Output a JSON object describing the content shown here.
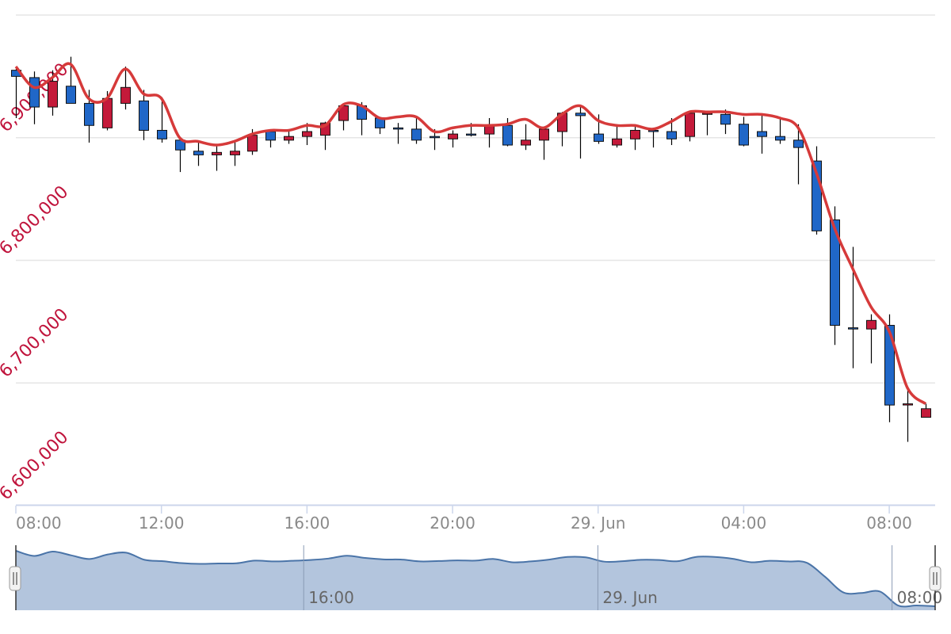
{
  "chart_data": {
    "type": "candlestick",
    "x": [
      "28 Jun 08:00",
      "28 Jun 08:30",
      "28 Jun 09:00",
      "28 Jun 09:30",
      "28 Jun 10:00",
      "28 Jun 10:30",
      "28 Jun 11:00",
      "28 Jun 11:30",
      "28 Jun 12:00",
      "28 Jun 12:30",
      "28 Jun 13:00",
      "28 Jun 13:30",
      "28 Jun 14:00",
      "28 Jun 14:30",
      "28 Jun 15:00",
      "28 Jun 15:30",
      "28 Jun 16:00",
      "28 Jun 16:30",
      "28 Jun 17:00",
      "28 Jun 17:30",
      "28 Jun 18:00",
      "28 Jun 18:30",
      "28 Jun 19:00",
      "28 Jun 19:30",
      "28 Jun 20:00",
      "28 Jun 20:30",
      "28 Jun 21:00",
      "28 Jun 21:30",
      "28 Jun 22:00",
      "28 Jun 22:30",
      "28 Jun 23:00",
      "28 Jun 23:30",
      "29 Jun 00:00",
      "29 Jun 00:30",
      "29 Jun 01:00",
      "29 Jun 01:30",
      "29 Jun 02:00",
      "29 Jun 02:30",
      "29 Jun 03:00",
      "29 Jun 03:30",
      "29 Jun 04:00",
      "29 Jun 04:30",
      "29 Jun 05:00",
      "29 Jun 05:30",
      "29 Jun 06:00",
      "29 Jun 06:30",
      "29 Jun 07:00",
      "29 Jun 07:30",
      "29 Jun 08:00",
      "29 Jun 08:30",
      "29 Jun 09:00"
    ],
    "open": [
      6955000,
      6949000,
      6925000,
      6942000,
      6928000,
      6908000,
      6928000,
      6930000,
      6906000,
      6898000,
      6889000,
      6886000,
      6886000,
      6889000,
      6905000,
      6898000,
      6901000,
      6902000,
      6914000,
      6926000,
      6916000,
      6908000,
      6907000,
      6901000,
      6899000,
      6903000,
      6903000,
      6910000,
      6894000,
      6898000,
      6905000,
      6920000,
      6903000,
      6894000,
      6899000,
      6906000,
      6905000,
      6901000,
      6920000,
      6919000,
      6911000,
      6905000,
      6901000,
      6898000,
      6881000,
      6833000,
      6745000,
      6744000,
      6747000,
      6683000,
      6672000
    ],
    "high": [
      6956000,
      6954000,
      6955000,
      6966000,
      6939000,
      6938000,
      6958000,
      6939000,
      6933000,
      6899000,
      6897000,
      6893000,
      6897000,
      6907000,
      6906000,
      6906000,
      6912000,
      6913000,
      6927000,
      6929000,
      6917000,
      6912000,
      6916000,
      6907000,
      6906000,
      6912000,
      6916000,
      6916000,
      6911000,
      6908000,
      6921000,
      6927000,
      6919000,
      6911000,
      6911000,
      6908000,
      6916000,
      6921000,
      6921000,
      6923000,
      6917000,
      6918000,
      6917000,
      6911000,
      6893000,
      6844000,
      6811000,
      6756000,
      6756000,
      6696000,
      6683000
    ],
    "low": [
      6916000,
      6911000,
      6918000,
      6928000,
      6896000,
      6906000,
      6923000,
      6898000,
      6896000,
      6872000,
      6877000,
      6873000,
      6877000,
      6886000,
      6892000,
      6895000,
      6894000,
      6890000,
      6906000,
      6902000,
      6903000,
      6895000,
      6895000,
      6890000,
      6892000,
      6901000,
      6892000,
      6893000,
      6890000,
      6882000,
      6893000,
      6883000,
      6895000,
      6892000,
      6890000,
      6892000,
      6894000,
      6897000,
      6902000,
      6903000,
      6893000,
      6887000,
      6895000,
      6862000,
      6821000,
      6731000,
      6712000,
      6716000,
      6668000,
      6652000,
      6672000
    ],
    "close": [
      6950000,
      6925000,
      6946000,
      6928000,
      6910000,
      6932000,
      6941000,
      6906000,
      6899000,
      6890000,
      6886000,
      6888000,
      6889000,
      6902000,
      6898000,
      6901000,
      6905000,
      6912000,
      6926000,
      6915000,
      6908000,
      6907000,
      6898000,
      6900000,
      6903000,
      6902000,
      6910000,
      6894000,
      6898000,
      6907000,
      6920000,
      6918000,
      6897000,
      6899000,
      6906000,
      6905000,
      6899000,
      6920000,
      6920000,
      6911000,
      6894000,
      6901000,
      6898000,
      6892000,
      6824000,
      6747000,
      6744000,
      6751000,
      6682000,
      6683000,
      6679000
    ],
    "line": [
      6958000,
      6941000,
      6949000,
      6960000,
      6932000,
      6932000,
      6956000,
      6936000,
      6932000,
      6900000,
      6897000,
      6894000,
      6897000,
      6903000,
      6906000,
      6906000,
      6910000,
      6910000,
      6927000,
      6926000,
      6916000,
      6917000,
      6917000,
      6905000,
      6908000,
      6910000,
      6910000,
      6911000,
      6915000,
      6908000,
      6919000,
      6926000,
      6914000,
      6910000,
      6910000,
      6907000,
      6913000,
      6921000,
      6921000,
      6921000,
      6919000,
      6919000,
      6916000,
      6908000,
      6871000,
      6826000,
      6793000,
      6762000,
      6742000,
      6696000,
      6683000
    ],
    "ylim": [
      6600000,
      7000000
    ],
    "y_ticks": [
      6600000,
      6700000,
      6800000,
      6900000,
      7000000
    ],
    "y_tick_labels": [
      "6,600,000",
      "6,700,000",
      "6,800,000",
      "6,900,000"
    ],
    "x_tick_labels": [
      "08:00",
      "12:00",
      "16:00",
      "20:00",
      "29. Jun",
      "04:00",
      "08:00"
    ],
    "grid": true,
    "colors": {
      "up": "#c41a3a",
      "down": "#2067c8",
      "line": "#d63a3a",
      "y_labels": "#c0143c",
      "navigator_fill": "#b3c5dd",
      "navigator_line": "#4a74a8"
    }
  },
  "navigator": {
    "labels": [
      "16:00",
      "29. Jun",
      "08:00"
    ]
  }
}
